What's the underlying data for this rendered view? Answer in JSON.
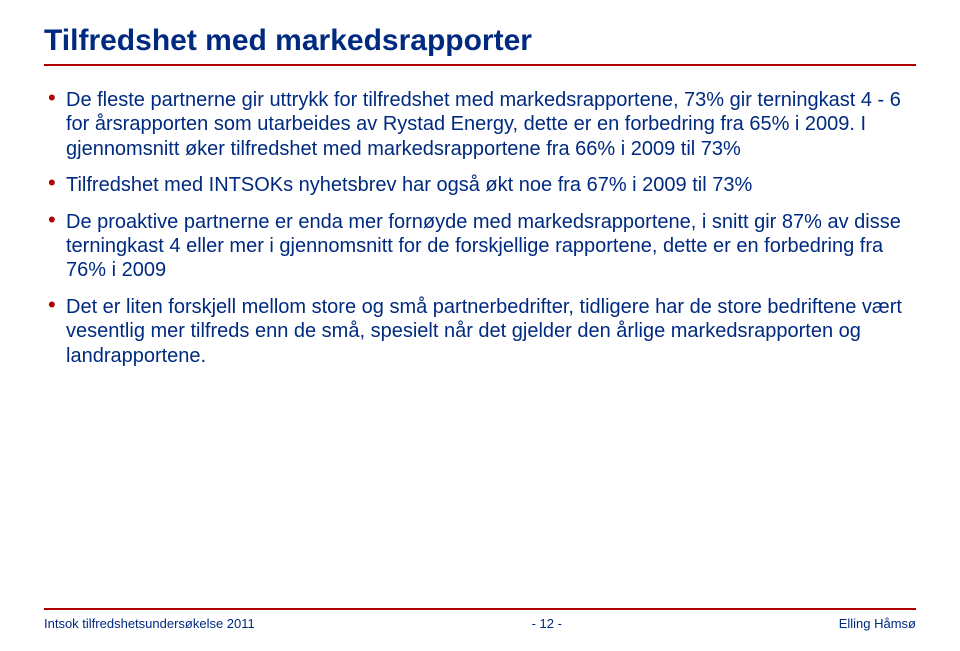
{
  "colors": {
    "title": "#002a80",
    "rule": "#b00000",
    "body": "#002a80",
    "bullet": "#b00000",
    "background": "#ffffff"
  },
  "typography": {
    "title_fontsize_pt": 22,
    "body_fontsize_pt": 15,
    "footer_fontsize_pt": 10,
    "font_family": "Arial"
  },
  "title": "Tilfredshet med markedsrapporter",
  "bullets": [
    "De fleste partnerne gir uttrykk for tilfredshet med markedsrapportene, 73% gir terningkast 4 - 6 for årsrapporten som utarbeides av Rystad Energy, dette er en forbedring fra 65% i 2009. I gjennomsnitt øker tilfredshet med markedsrapportene fra 66% i 2009 til 73%",
    "Tilfredshet med INTSOKs nyhetsbrev har også økt noe fra 67% i 2009 til 73%",
    "De proaktive partnerne er enda mer fornøyde med markedsrapportene, i snitt gir 87% av disse terningkast 4 eller mer i gjennomsnitt for de forskjellige rapportene, dette er en forbedring fra 76% i 2009",
    "Det er liten forskjell mellom store og små partnerbedrifter, tidligere har de store bedriftene vært vesentlig mer tilfreds enn de små, spesielt når det gjelder den årlige markedsrapporten og landrapportene."
  ],
  "footer": {
    "left": "Intsok tilfredshetsundersøkelse 2011",
    "center": "- 12 -",
    "right": "Elling Håmsø"
  }
}
